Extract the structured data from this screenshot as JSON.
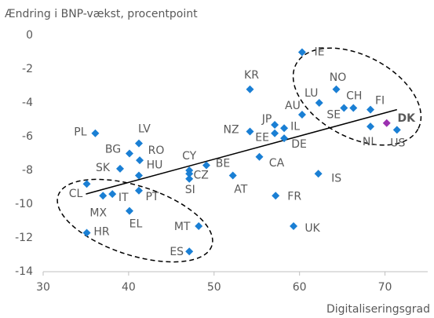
{
  "chart_data": {
    "type": "scatter",
    "y_label": "Ændring i BNP-vækst, procentpoint",
    "x_label": "Digitaliseringsgrad",
    "xlim": [
      30,
      75
    ],
    "xticks": [
      30,
      40,
      50,
      60,
      70
    ],
    "ylim": [
      -14,
      0
    ],
    "yticks": [
      0,
      -2,
      -4,
      -6,
      -8,
      -10,
      -12,
      -14
    ],
    "color": "#1a7fd4",
    "labels": [
      "IE",
      "NO",
      "LU",
      "SE",
      "CH",
      "FI",
      "AU",
      "DK",
      "NL",
      "US",
      "KR",
      "JP",
      "IL",
      "NZ",
      "EE",
      "DE",
      "CA",
      "PL",
      "LV",
      "BG",
      "RO",
      "SK",
      "HU",
      "CY",
      "CZ",
      "SI",
      "BE",
      "AT",
      "IS",
      "CL",
      "MX",
      "IT",
      "PT",
      "FR",
      "EL",
      "MT",
      "UK",
      "HR",
      "ES"
    ],
    "x": [
      60.3,
      64.3,
      62.3,
      65.2,
      66.3,
      68.3,
      60.3,
      70.2,
      68.3,
      71.4,
      54.2,
      57.1,
      58.2,
      54.2,
      57.1,
      58.2,
      55.3,
      36.1,
      41.2,
      40.1,
      41.3,
      39.0,
      41.2,
      47.1,
      47.1,
      47.1,
      49.1,
      52.2,
      62.2,
      35.1,
      37.0,
      38.1,
      41.2,
      57.2,
      40.1,
      48.2,
      59.3,
      35.1,
      47.1
    ],
    "values": [
      -1.0,
      -3.2,
      -4.0,
      -4.3,
      -4.3,
      -4.4,
      -4.7,
      -5.2,
      -5.4,
      -5.6,
      -3.2,
      -5.3,
      -5.5,
      -5.7,
      -5.8,
      -6.1,
      -7.2,
      -5.8,
      -6.4,
      -7.0,
      -7.4,
      -7.9,
      -8.3,
      -8.0,
      -8.2,
      -8.5,
      -7.7,
      -8.3,
      -8.2,
      -8.8,
      -9.5,
      -9.4,
      -9.2,
      -9.5,
      -10.4,
      -11.3,
      -11.3,
      -11.7,
      -12.8
    ],
    "point_colors": [
      "#1a7fd4",
      "#1a7fd4",
      "#1a7fd4",
      "#1a7fd4",
      "#1a7fd4",
      "#1a7fd4",
      "#1a7fd4",
      "#9b30b0",
      "#1a7fd4",
      "#1a7fd4",
      "#1a7fd4",
      "#1a7fd4",
      "#1a7fd4",
      "#1a7fd4",
      "#1a7fd4",
      "#1a7fd4",
      "#1a7fd4",
      "#1a7fd4",
      "#1a7fd4",
      "#1a7fd4",
      "#1a7fd4",
      "#1a7fd4",
      "#1a7fd4",
      "#1a7fd4",
      "#1a7fd4",
      "#1a7fd4",
      "#1a7fd4",
      "#1a7fd4",
      "#1a7fd4",
      "#1a7fd4",
      "#1a7fd4",
      "#1a7fd4",
      "#1a7fd4",
      "#1a7fd4",
      "#1a7fd4",
      "#1a7fd4",
      "#1a7fd4",
      "#1a7fd4",
      "#1a7fd4"
    ],
    "trendline": {
      "x": [
        35,
        71.4
      ],
      "y": [
        -9.4,
        -4.4
      ],
      "color": "#000000"
    }
  }
}
